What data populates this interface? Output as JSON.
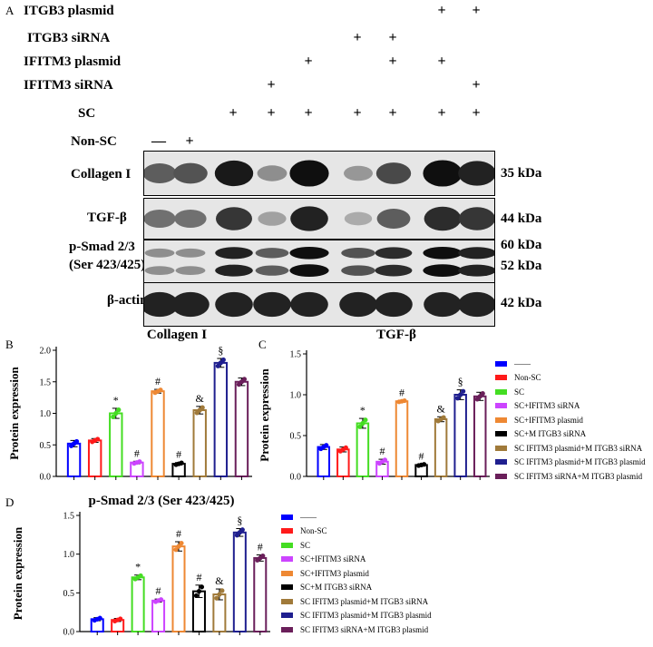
{
  "figure": {
    "panel_letters": {
      "a": "A",
      "b": "B",
      "c": "C",
      "d": "D"
    },
    "conditions": [
      {
        "label": "ITGB3 plasmid",
        "signs": [
          "",
          "",
          "",
          "",
          "",
          "",
          "",
          "+",
          "+"
        ]
      },
      {
        "label": "ITGB3 siRNA",
        "signs": [
          "",
          "",
          "",
          "",
          "",
          "+",
          "+",
          "",
          ""
        ]
      },
      {
        "label": "IFITM3 plasmid",
        "signs": [
          "",
          "",
          "",
          "",
          "+",
          "",
          "+",
          "+",
          ""
        ]
      },
      {
        "label": "IFITM3 siRNA",
        "signs": [
          "",
          "",
          "",
          "+",
          "",
          "",
          "",
          "",
          "+"
        ]
      },
      {
        "label": "SC",
        "signs": [
          "",
          "",
          "+",
          "+",
          "+",
          "+",
          "+",
          "+",
          "+"
        ]
      },
      {
        "label": "Non-SC",
        "signs": [
          "—",
          "+",
          "",
          "",
          "",
          "",
          "",
          "",
          ""
        ]
      }
    ],
    "blots": [
      {
        "label": "Collagen I",
        "kda": [
          "35 kDa"
        ],
        "intensity": [
          0.55,
          0.6,
          0.9,
          0.3,
          0.95,
          0.25,
          0.65,
          0.95,
          0.85
        ]
      },
      {
        "label": "TGF-β",
        "kda": [
          "44 kDa"
        ],
        "intensity": [
          0.45,
          0.45,
          0.75,
          0.2,
          0.85,
          0.15,
          0.55,
          0.8,
          0.75
        ]
      },
      {
        "label": "p-Smad 2/3",
        "label2": "(Ser 423/425)",
        "kda": [
          "60 kDa",
          "52 kDa"
        ],
        "intensity": [
          0.3,
          0.3,
          0.85,
          0.55,
          0.95,
          0.6,
          0.8,
          0.95,
          0.85
        ]
      },
      {
        "label": "β-actin",
        "kda": [
          "42 kDa"
        ],
        "intensity": [
          0.85,
          0.85,
          0.85,
          0.85,
          0.85,
          0.85,
          0.85,
          0.85,
          0.85
        ]
      }
    ]
  },
  "legend_colors": [
    "#0000ff",
    "#ff1a1a",
    "#44dd22",
    "#cc44ff",
    "#ee8833",
    "#000000",
    "#a07a3a",
    "#1f1f8f",
    "#6a1f5a"
  ],
  "chart_data": [
    {
      "type": "bar",
      "title": "Collagen I",
      "ylabel": "Protein expression",
      "ylim": [
        0,
        2.0
      ],
      "yticks": [
        "0.0",
        "0.5",
        "1.0",
        "1.5",
        "2.0"
      ],
      "values": [
        0.52,
        0.57,
        1.0,
        0.22,
        1.35,
        0.2,
        1.05,
        1.8,
        1.5
      ],
      "errors": [
        0.05,
        0.03,
        0.08,
        0.02,
        0.03,
        0.02,
        0.06,
        0.07,
        0.06
      ],
      "annotations": [
        "",
        "",
        "*",
        "#",
        "#",
        "#",
        "&",
        "§",
        ""
      ],
      "legend": [
        "——",
        "Non-SC",
        "SC",
        "SC+IFITM3 siRNA",
        "SC+IFITM3 plasmid",
        "SC+M ITGB3 siRNA",
        "SC IFITM3 plasmid+M ITGB3 siRNA",
        "SC IFITM3 plasmid+M ITGB3 plasmid",
        "SC IFITM3 siRNA+M ITGB3 plasmid"
      ]
    },
    {
      "type": "bar",
      "title": "TGF-β",
      "ylabel": "Protein expression",
      "ylim": [
        0,
        1.5
      ],
      "yticks": [
        "0.0",
        "0.5",
        "1.0",
        "1.5"
      ],
      "values": [
        0.36,
        0.33,
        0.65,
        0.18,
        0.92,
        0.14,
        0.7,
        1.0,
        0.98
      ],
      "errors": [
        0.03,
        0.03,
        0.06,
        0.03,
        0.01,
        0.01,
        0.03,
        0.06,
        0.05
      ],
      "annotations": [
        "",
        "",
        "*",
        "#",
        "#",
        "#",
        "&",
        "§",
        ""
      ],
      "legend": [
        "——",
        "Non-SC",
        "SC",
        "SC+IFITM3 siRNA",
        "SC+IFITM3 plasmid",
        "SC+M ITGB3 siRNA",
        "SC IFITM3 plasmid+M ITGB3 siRNA",
        "SC IFITM3 plasmid+M ITGB3 plasmid",
        "SC IFITM3 siRNA+M ITGB3 plasmid"
      ]
    },
    {
      "type": "bar",
      "title": "p-Smad 2/3 (Ser 423/425)",
      "ylabel": "Protein expression",
      "ylim": [
        0,
        1.5
      ],
      "yticks": [
        "0.0",
        "0.5",
        "1.0",
        "1.5"
      ],
      "values": [
        0.16,
        0.15,
        0.7,
        0.4,
        1.1,
        0.52,
        0.48,
        1.28,
        0.95
      ],
      "errors": [
        0.02,
        0.02,
        0.03,
        0.02,
        0.06,
        0.08,
        0.07,
        0.05,
        0.04
      ],
      "annotations": [
        "",
        "",
        "*",
        "#",
        "#",
        "#",
        "&",
        "§",
        "#"
      ],
      "legend": [
        "——",
        "Non-SC",
        "SC",
        "SC+IFITM3 siRNA",
        "SC+IFITM3 plasmid",
        "SC+M ITGB3 siRNA",
        "SC IFITM3 plasmid+M ITGB3 siRNA",
        "SC IFITM3 plasmid+M ITGB3 plasmid",
        "SC IFITM3 siRNA+M ITGB3 plasmid"
      ]
    }
  ]
}
